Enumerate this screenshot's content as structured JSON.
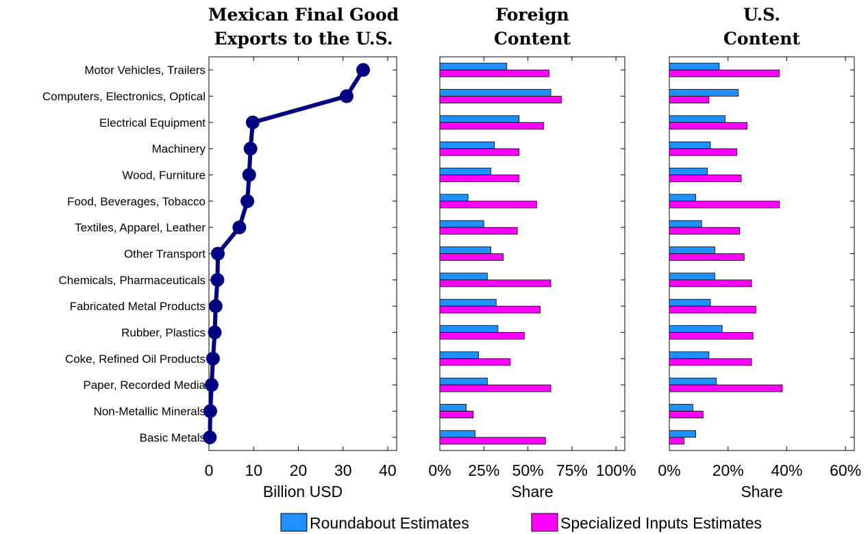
{
  "colors": {
    "series_line": "#000080",
    "roundabout": "#1e90ff",
    "specialized": "#ff00ff",
    "axis": "#000000"
  },
  "legend": {
    "roundabout": "Roundabout Estimates",
    "specialized": "Specialized Inputs Estimates"
  },
  "chart_data": [
    {
      "type": "line",
      "title_lines": [
        "Mexican Final Good",
        "Exports to the U.S."
      ],
      "xlabel": "Billion USD",
      "xlim": [
        0,
        42
      ],
      "xticks": [
        0,
        10,
        20,
        30,
        40
      ],
      "xtick_labels": [
        "0",
        "10",
        "20",
        "30",
        "40"
      ],
      "categories": [
        "Motor Vehicles, Trailers",
        "Computers, Electronics, Optical",
        "Electrical Equipment",
        "Machinery",
        "Wood, Furniture",
        "Food, Beverages, Tobacco",
        "Textiles, Apparel, Leather",
        "Other Transport",
        "Chemicals, Pharmaceuticals",
        "Fabricated Metal Products",
        "Rubber, Plastics",
        "Coke, Refined Oil Products",
        "Paper, Recorded Media",
        "Non-Metallic Minerals",
        "Basic Metals"
      ],
      "values": [
        34.5,
        30.8,
        9.8,
        9.3,
        9.0,
        8.6,
        6.8,
        2.0,
        1.9,
        1.5,
        1.3,
        0.9,
        0.6,
        0.3,
        0.2
      ]
    },
    {
      "type": "bar",
      "orientation": "horizontal",
      "title_lines": [
        "Foreign",
        "Content"
      ],
      "xlabel": "Share",
      "xlim": [
        0,
        1.05
      ],
      "xticks": [
        0,
        0.25,
        0.5,
        0.75,
        1.0
      ],
      "xtick_labels": [
        "0%",
        "25%",
        "50%",
        "75%",
        "100%"
      ],
      "series": [
        {
          "name": "Roundabout Estimates",
          "values": [
            0.38,
            0.63,
            0.45,
            0.31,
            0.29,
            0.16,
            0.25,
            0.29,
            0.27,
            0.32,
            0.33,
            0.22,
            0.27,
            0.15,
            0.2
          ]
        },
        {
          "name": "Specialized Inputs Estimates",
          "values": [
            0.62,
            0.69,
            0.59,
            0.45,
            0.45,
            0.55,
            0.44,
            0.36,
            0.63,
            0.57,
            0.48,
            0.4,
            0.63,
            0.19,
            0.6
          ]
        }
      ]
    },
    {
      "type": "bar",
      "orientation": "horizontal",
      "title_lines": [
        "U.S.",
        "Content"
      ],
      "xlabel": "Share",
      "xlim": [
        0,
        0.63
      ],
      "xticks": [
        0,
        0.2,
        0.4,
        0.6
      ],
      "xtick_labels": [
        "0%",
        "20%",
        "40%",
        "60%"
      ],
      "series": [
        {
          "name": "Roundabout Estimates",
          "values": [
            0.17,
            0.235,
            0.19,
            0.14,
            0.13,
            0.09,
            0.11,
            0.155,
            0.155,
            0.14,
            0.18,
            0.135,
            0.16,
            0.08,
            0.09
          ]
        },
        {
          "name": "Specialized Inputs Estimates",
          "values": [
            0.375,
            0.135,
            0.265,
            0.23,
            0.245,
            0.375,
            0.24,
            0.255,
            0.28,
            0.295,
            0.285,
            0.28,
            0.385,
            0.115,
            0.05
          ]
        }
      ]
    }
  ]
}
